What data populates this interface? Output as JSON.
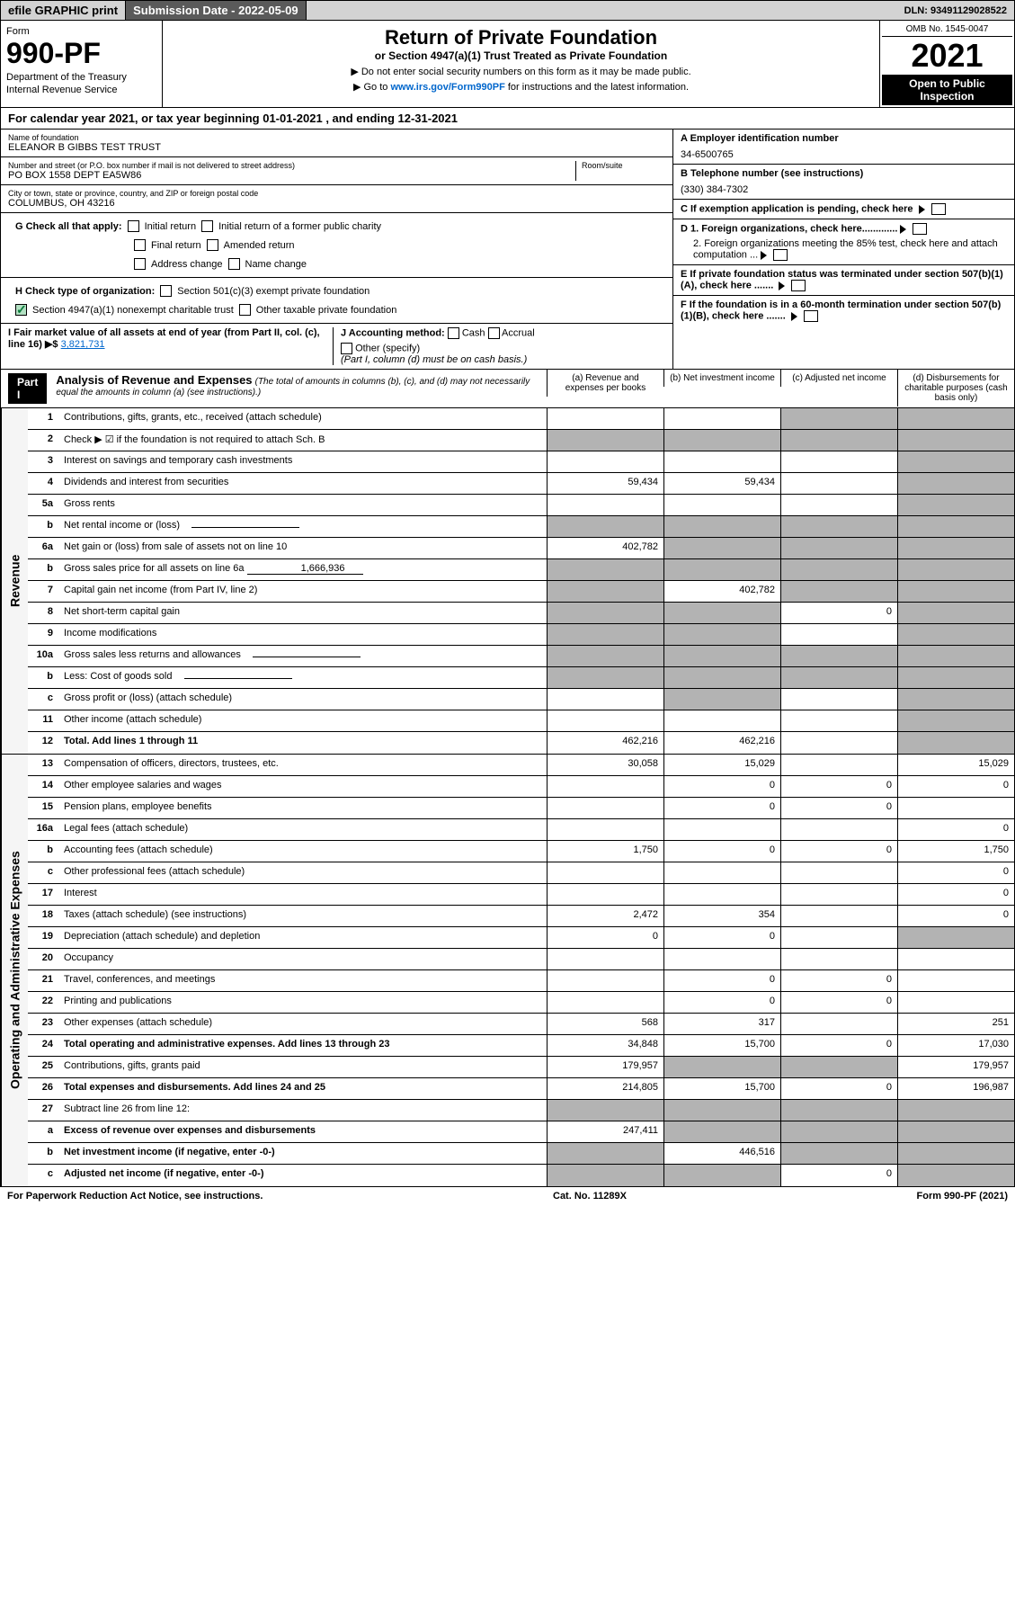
{
  "top": {
    "efile": "efile GRAPHIC print",
    "sub_label": "Submission Date - 2022-05-09",
    "dln": "DLN: 93491129028522"
  },
  "header": {
    "form_label": "Form",
    "form_num": "990-PF",
    "dept1": "Department of the Treasury",
    "dept2": "Internal Revenue Service",
    "title": "Return of Private Foundation",
    "subtitle": "or Section 4947(a)(1) Trust Treated as Private Foundation",
    "instr1": "▶ Do not enter social security numbers on this form as it may be made public.",
    "instr2_pre": "▶ Go to ",
    "instr2_link": "www.irs.gov/Form990PF",
    "instr2_post": " for instructions and the latest information.",
    "omb": "OMB No. 1545-0047",
    "year": "2021",
    "open_pub": "Open to Public Inspection"
  },
  "cal_year": "For calendar year 2021, or tax year beginning 01-01-2021            , and ending 12-31-2021",
  "foundation": {
    "name_label": "Name of foundation",
    "name": "ELEANOR B GIBBS TEST TRUST",
    "addr_label": "Number and street (or P.O. box number if mail is not delivered to street address)",
    "addr": "PO BOX 1558 DEPT EA5W86",
    "room_label": "Room/suite",
    "city_label": "City or town, state or province, country, and ZIP or foreign postal code",
    "city": "COLUMBUS, OH  43216",
    "a_label": "A Employer identification number",
    "a_val": "34-6500765",
    "b_label": "B Telephone number (see instructions)",
    "b_val": "(330) 384-7302",
    "c_label": "C If exemption application is pending, check here",
    "d1": "D 1. Foreign organizations, check here.............",
    "d2": "2. Foreign organizations meeting the 85% test, check here and attach computation ...",
    "e_label": "E If private foundation status was terminated under section 507(b)(1)(A), check here .......",
    "f_label": "F If the foundation is in a 60-month termination under section 507(b)(1)(B), check here ......."
  },
  "checkboxes": {
    "g_label": "G Check all that apply:",
    "g_opts": [
      "Initial return",
      "Initial return of a former public charity",
      "Final return",
      "Amended return",
      "Address change",
      "Name change"
    ],
    "h_label": "H Check type of organization:",
    "h1": "Section 501(c)(3) exempt private foundation",
    "h2": "Section 4947(a)(1) nonexempt charitable trust",
    "h3": "Other taxable private foundation",
    "i_label": "I Fair market value of all assets at end of year (from Part II, col. (c), line 16) ▶$",
    "i_val": "3,821,731",
    "j_label": "J Accounting method:",
    "j_cash": "Cash",
    "j_accrual": "Accrual",
    "j_other": "Other (specify)",
    "j_note": "(Part I, column (d) must be on cash basis.)"
  },
  "part1": {
    "label": "Part I",
    "title": "Analysis of Revenue and Expenses",
    "title_note": "(The total of amounts in columns (b), (c), and (d) may not necessarily equal the amounts in column (a) (see instructions).)",
    "col_a": "(a) Revenue and expenses per books",
    "col_b": "(b) Net investment income",
    "col_c": "(c) Adjusted net income",
    "col_d": "(d) Disbursements for charitable purposes (cash basis only)"
  },
  "sections": {
    "revenue_label": "Revenue",
    "expenses_label": "Operating and Administrative Expenses"
  },
  "rows": [
    {
      "n": "1",
      "label": "Contributions, gifts, grants, etc., received (attach schedule)",
      "a": "",
      "b": "",
      "c": "s",
      "d": "s"
    },
    {
      "n": "2",
      "label": "Check ▶ ☑ if the foundation is not required to attach Sch. B",
      "bold_not": true,
      "a": "s",
      "b": "s",
      "c": "s",
      "d": "s"
    },
    {
      "n": "3",
      "label": "Interest on savings and temporary cash investments",
      "a": "",
      "b": "",
      "c": "",
      "d": "s"
    },
    {
      "n": "4",
      "label": "Dividends and interest from securities",
      "a": "59,434",
      "b": "59,434",
      "c": "",
      "d": "s"
    },
    {
      "n": "5a",
      "label": "Gross rents",
      "a": "",
      "b": "",
      "c": "",
      "d": "s"
    },
    {
      "n": "b",
      "label": "Net rental income or (loss)",
      "a": "s",
      "b": "s",
      "c": "s",
      "d": "s",
      "inline": true
    },
    {
      "n": "6a",
      "label": "Net gain or (loss) from sale of assets not on line 10",
      "a": "402,782",
      "b": "s",
      "c": "s",
      "d": "s"
    },
    {
      "n": "b",
      "label": "Gross sales price for all assets on line 6a",
      "a": "s",
      "b": "s",
      "c": "s",
      "d": "s",
      "inline_val": "1,666,936"
    },
    {
      "n": "7",
      "label": "Capital gain net income (from Part IV, line 2)",
      "a": "s",
      "b": "402,782",
      "c": "s",
      "d": "s"
    },
    {
      "n": "8",
      "label": "Net short-term capital gain",
      "a": "s",
      "b": "s",
      "c": "0",
      "d": "s"
    },
    {
      "n": "9",
      "label": "Income modifications",
      "a": "s",
      "b": "s",
      "c": "",
      "d": "s"
    },
    {
      "n": "10a",
      "label": "Gross sales less returns and allowances",
      "a": "s",
      "b": "s",
      "c": "s",
      "d": "s",
      "inline": true
    },
    {
      "n": "b",
      "label": "Less: Cost of goods sold",
      "a": "s",
      "b": "s",
      "c": "s",
      "d": "s",
      "inline": true
    },
    {
      "n": "c",
      "label": "Gross profit or (loss) (attach schedule)",
      "a": "",
      "b": "s",
      "c": "",
      "d": "s"
    },
    {
      "n": "11",
      "label": "Other income (attach schedule)",
      "a": "",
      "b": "",
      "c": "",
      "d": "s"
    },
    {
      "n": "12",
      "label": "Total. Add lines 1 through 11",
      "bold": true,
      "a": "462,216",
      "b": "462,216",
      "c": "",
      "d": "s"
    }
  ],
  "exp_rows": [
    {
      "n": "13",
      "label": "Compensation of officers, directors, trustees, etc.",
      "a": "30,058",
      "b": "15,029",
      "c": "",
      "d": "15,029"
    },
    {
      "n": "14",
      "label": "Other employee salaries and wages",
      "a": "",
      "b": "0",
      "c": "0",
      "d": "0"
    },
    {
      "n": "15",
      "label": "Pension plans, employee benefits",
      "a": "",
      "b": "0",
      "c": "0",
      "d": ""
    },
    {
      "n": "16a",
      "label": "Legal fees (attach schedule)",
      "a": "",
      "b": "",
      "c": "",
      "d": "0"
    },
    {
      "n": "b",
      "label": "Accounting fees (attach schedule)",
      "a": "1,750",
      "b": "0",
      "c": "0",
      "d": "1,750"
    },
    {
      "n": "c",
      "label": "Other professional fees (attach schedule)",
      "a": "",
      "b": "",
      "c": "",
      "d": "0"
    },
    {
      "n": "17",
      "label": "Interest",
      "a": "",
      "b": "",
      "c": "",
      "d": "0"
    },
    {
      "n": "18",
      "label": "Taxes (attach schedule) (see instructions)",
      "a": "2,472",
      "b": "354",
      "c": "",
      "d": "0"
    },
    {
      "n": "19",
      "label": "Depreciation (attach schedule) and depletion",
      "a": "0",
      "b": "0",
      "c": "",
      "d": "s"
    },
    {
      "n": "20",
      "label": "Occupancy",
      "a": "",
      "b": "",
      "c": "",
      "d": ""
    },
    {
      "n": "21",
      "label": "Travel, conferences, and meetings",
      "a": "",
      "b": "0",
      "c": "0",
      "d": ""
    },
    {
      "n": "22",
      "label": "Printing and publications",
      "a": "",
      "b": "0",
      "c": "0",
      "d": ""
    },
    {
      "n": "23",
      "label": "Other expenses (attach schedule)",
      "a": "568",
      "b": "317",
      "c": "",
      "d": "251"
    },
    {
      "n": "24",
      "label": "Total operating and administrative expenses. Add lines 13 through 23",
      "bold": true,
      "a": "34,848",
      "b": "15,700",
      "c": "0",
      "d": "17,030"
    },
    {
      "n": "25",
      "label": "Contributions, gifts, grants paid",
      "a": "179,957",
      "b": "s",
      "c": "s",
      "d": "179,957"
    },
    {
      "n": "26",
      "label": "Total expenses and disbursements. Add lines 24 and 25",
      "bold": true,
      "a": "214,805",
      "b": "15,700",
      "c": "0",
      "d": "196,987"
    },
    {
      "n": "27",
      "label": "Subtract line 26 from line 12:",
      "a": "s",
      "b": "s",
      "c": "s",
      "d": "s"
    },
    {
      "n": "a",
      "label": "Excess of revenue over expenses and disbursements",
      "bold": true,
      "a": "247,411",
      "b": "s",
      "c": "s",
      "d": "s"
    },
    {
      "n": "b",
      "label": "Net investment income (if negative, enter -0-)",
      "bold": true,
      "a": "s",
      "b": "446,516",
      "c": "s",
      "d": "s"
    },
    {
      "n": "c",
      "label": "Adjusted net income (if negative, enter -0-)",
      "bold": true,
      "a": "s",
      "b": "s",
      "c": "0",
      "d": "s"
    }
  ],
  "footer": {
    "left": "For Paperwork Reduction Act Notice, see instructions.",
    "mid": "Cat. No. 11289X",
    "right": "Form 990-PF (2021)"
  }
}
